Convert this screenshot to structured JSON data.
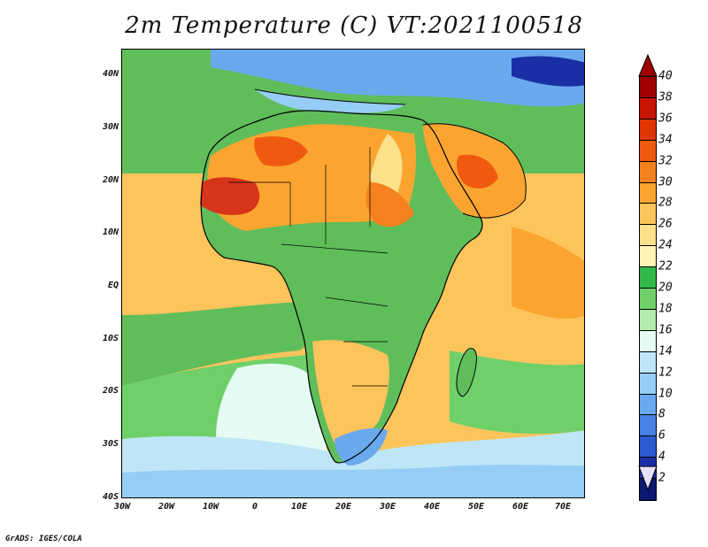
{
  "title": "2m Temperature (C) VT:2021100518",
  "credit": "GrADS: IGES/COLA",
  "y_axis_labels": [
    "40N",
    "30N",
    "20N",
    "10N",
    "EQ",
    "10S",
    "20S",
    "30S",
    "40S"
  ],
  "x_axis_labels": [
    "30W",
    "20W",
    "10W",
    "0",
    "10E",
    "20E",
    "30E",
    "40E",
    "50E",
    "60E",
    "70E"
  ],
  "colorbar": {
    "labels": [
      "40",
      "38",
      "36",
      "34",
      "32",
      "30",
      "28",
      "26",
      "24",
      "22",
      "20",
      "18",
      "16",
      "14",
      "12",
      "10",
      "8",
      "6",
      "4",
      "2"
    ],
    "colors": [
      "#a00000",
      "#c81400",
      "#e03500",
      "#f05a10",
      "#f5821e",
      "#fba530",
      "#fdc45c",
      "#fce08a",
      "#fef4b4",
      "#33b84a",
      "#6fd06a",
      "#b4ecad",
      "#e6fbf4",
      "#bfe6f6",
      "#96cdf4",
      "#6aa9ee",
      "#4681e4",
      "#2a5bd3",
      "#1a2fa6",
      "#0d1770"
    ],
    "top_arrow_color": "#a00000",
    "bottom_arrow_color": "#e6e0f8"
  },
  "map": {
    "ocean_color": "#fce08a",
    "land_color": "#5fbd5a",
    "sahara_color": "#f7a94a",
    "hot_core_color": "#d7351a",
    "cool_south_color": "#b4ecad",
    "southern_ocean_color": "#96cdf4",
    "coastline_color": "#000000"
  }
}
